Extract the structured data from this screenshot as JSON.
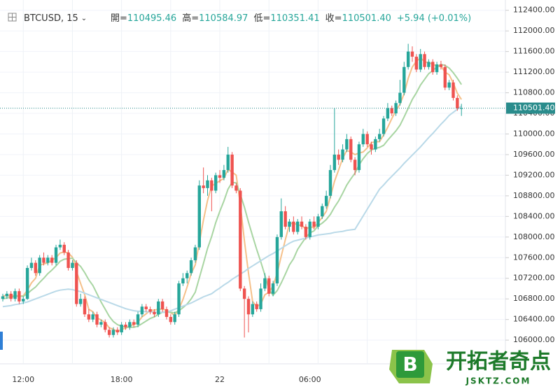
{
  "chart_data": {
    "type": "candlestick",
    "header": {
      "symbol": "BTCUSD, 15",
      "open_label": "開=",
      "open": "110495.46",
      "high_label": "高=",
      "high": "110584.97",
      "low_label": "低=",
      "low": "110351.41",
      "close_label": "收=",
      "close": "110501.40",
      "change": "+5.94 (+0.01%)"
    },
    "up_color": "#26a69a",
    "down_color": "#ef5350",
    "ylim": [
      105540,
      112600
    ],
    "yticks": [
      {
        "value": 106000,
        "label": "106000.00"
      },
      {
        "value": 106400,
        "label": "106400.00"
      },
      {
        "value": 106800,
        "label": "106800.00"
      },
      {
        "value": 107200,
        "label": "107200.00"
      },
      {
        "value": 107600,
        "label": "107600.00"
      },
      {
        "value": 108000,
        "label": "108000.00"
      },
      {
        "value": 108400,
        "label": "108400.00"
      },
      {
        "value": 108800,
        "label": "108800.00"
      },
      {
        "value": 109200,
        "label": "109200.00"
      },
      {
        "value": 109600,
        "label": "109600.00"
      },
      {
        "value": 110000,
        "label": "110000.00"
      },
      {
        "value": 110400,
        "label": "110400.00"
      },
      {
        "value": 110800,
        "label": "110800.00"
      },
      {
        "value": 111200,
        "label": "111200.00"
      },
      {
        "value": 111600,
        "label": "111600.00"
      },
      {
        "value": 112000,
        "label": "112000.00"
      },
      {
        "value": 112400,
        "label": "112400.00"
      }
    ],
    "last_price": {
      "value": 110501.4,
      "label": "110501.40",
      "color": "#2a8c8c"
    },
    "categories": [
      null,
      null,
      null,
      null,
      null,
      "12:00",
      null,
      null,
      null,
      null,
      null,
      null,
      null,
      null,
      null,
      null,
      null,
      null,
      null,
      null,
      null,
      null,
      null,
      null,
      null,
      null,
      null,
      null,
      null,
      "18:00",
      null,
      null,
      null,
      null,
      null,
      null,
      null,
      null,
      null,
      null,
      null,
      null,
      null,
      null,
      null,
      null,
      null,
      null,
      null,
      null,
      null,
      null,
      null,
      "22",
      null,
      null,
      null,
      null,
      null,
      null,
      null,
      null,
      null,
      null,
      null,
      null,
      null,
      null,
      null,
      null,
      null,
      null,
      null,
      null,
      null,
      "06:00",
      null,
      null,
      null,
      null,
      null,
      null,
      null,
      null,
      null,
      null,
      null,
      null,
      null,
      null,
      null,
      null,
      null,
      null,
      null,
      null,
      null,
      null,
      null,
      null,
      null,
      null,
      null,
      null,
      null,
      null,
      null,
      null,
      null,
      null,
      null
    ],
    "ohlc": [
      [
        106800,
        106900,
        106750,
        106850
      ],
      [
        106850,
        106950,
        106800,
        106900
      ],
      [
        106900,
        106950,
        106750,
        106800
      ],
      [
        106800,
        107000,
        106750,
        106950
      ],
      [
        106950,
        107000,
        106700,
        106750
      ],
      [
        106750,
        106850,
        106700,
        106800
      ],
      [
        106800,
        107450,
        106780,
        107400
      ],
      [
        107400,
        107600,
        107350,
        107500
      ],
      [
        107500,
        107550,
        107250,
        107300
      ],
      [
        107300,
        107650,
        107250,
        107600
      ],
      [
        107600,
        107700,
        107450,
        107500
      ],
      [
        107500,
        107650,
        107450,
        107600
      ],
      [
        107600,
        107650,
        107450,
        107500
      ],
      [
        107500,
        107850,
        107450,
        107800
      ],
      [
        107800,
        107950,
        107750,
        107850
      ],
      [
        107850,
        107900,
        107650,
        107700
      ],
      [
        107700,
        107750,
        107350,
        107400
      ],
      [
        107400,
        107550,
        107350,
        107500
      ],
      [
        107500,
        107550,
        106650,
        106700
      ],
      [
        106700,
        106900,
        106650,
        106800
      ],
      [
        106800,
        106850,
        106450,
        106500
      ],
      [
        106500,
        106600,
        106350,
        106400
      ],
      [
        106400,
        106550,
        106350,
        106500
      ],
      [
        106500,
        106550,
        106250,
        106300
      ],
      [
        106300,
        106400,
        106250,
        106350
      ],
      [
        106350,
        106400,
        106150,
        106200
      ],
      [
        106200,
        106250,
        106050,
        106100
      ],
      [
        106100,
        106250,
        106050,
        106200
      ],
      [
        106200,
        106250,
        106100,
        106150
      ],
      [
        106150,
        106350,
        106100,
        106300
      ],
      [
        106300,
        106350,
        106200,
        106250
      ],
      [
        106250,
        106400,
        106200,
        106350
      ],
      [
        106350,
        106400,
        106250,
        106300
      ],
      [
        106300,
        106550,
        106250,
        106500
      ],
      [
        106500,
        106700,
        106450,
        106650
      ],
      [
        106650,
        106700,
        106550,
        106600
      ],
      [
        106600,
        106650,
        106500,
        106550
      ],
      [
        106550,
        106600,
        106450,
        106500
      ],
      [
        106500,
        106800,
        106450,
        106750
      ],
      [
        106750,
        106800,
        106550,
        106600
      ],
      [
        106600,
        106650,
        106400,
        106450
      ],
      [
        106450,
        106500,
        106300,
        106350
      ],
      [
        106350,
        106550,
        106300,
        106500
      ],
      [
        106500,
        107150,
        106450,
        107100
      ],
      [
        107100,
        107300,
        107050,
        107200
      ],
      [
        107200,
        107350,
        107100,
        107300
      ],
      [
        107300,
        107600,
        107250,
        107550
      ],
      [
        107550,
        107850,
        107500,
        107800
      ],
      [
        107800,
        109100,
        107750,
        109000
      ],
      [
        109000,
        109350,
        108850,
        108950
      ],
      [
        108950,
        109200,
        108800,
        109100
      ],
      [
        109100,
        109150,
        108500,
        108900
      ],
      [
        108900,
        109250,
        108850,
        109200
      ],
      [
        109200,
        109300,
        109050,
        109150
      ],
      [
        109150,
        109400,
        109100,
        109300
      ],
      [
        109300,
        109750,
        109250,
        109600
      ],
      [
        109600,
        109650,
        108950,
        109000
      ],
      [
        109000,
        109050,
        108850,
        108900
      ],
      [
        108900,
        108950,
        106950,
        107000
      ],
      [
        107000,
        107050,
        106050,
        106800
      ],
      [
        106800,
        106850,
        106150,
        106500
      ],
      [
        106500,
        106750,
        106450,
        106700
      ],
      [
        106700,
        106750,
        106550,
        106600
      ],
      [
        106600,
        107100,
        106550,
        107000
      ],
      [
        107000,
        107300,
        106950,
        107200
      ],
      [
        107200,
        107250,
        106850,
        106900
      ],
      [
        106900,
        107150,
        106850,
        107100
      ],
      [
        107100,
        108050,
        107050,
        108000
      ],
      [
        108000,
        108750,
        107950,
        108500
      ],
      [
        108500,
        108600,
        108150,
        108200
      ],
      [
        108200,
        108350,
        108100,
        108300
      ],
      [
        108300,
        108400,
        108050,
        108100
      ],
      [
        108100,
        108350,
        108050,
        108300
      ],
      [
        108300,
        108400,
        108150,
        108200
      ],
      [
        108200,
        108250,
        107950,
        108000
      ],
      [
        108000,
        108350,
        107950,
        108300
      ],
      [
        108300,
        108400,
        108150,
        108200
      ],
      [
        108200,
        108450,
        108150,
        108400
      ],
      [
        108400,
        108650,
        108350,
        108600
      ],
      [
        108600,
        108900,
        108550,
        108800
      ],
      [
        108800,
        109400,
        108750,
        109300
      ],
      [
        109300,
        110500,
        109250,
        109600
      ],
      [
        109600,
        109700,
        109400,
        109500
      ],
      [
        109500,
        109800,
        109450,
        109700
      ],
      [
        109700,
        110000,
        109650,
        109900
      ],
      [
        109900,
        109950,
        109450,
        109500
      ],
      [
        109500,
        109550,
        109200,
        109300
      ],
      [
        109300,
        109850,
        109250,
        109800
      ],
      [
        109800,
        110100,
        109750,
        110000
      ],
      [
        110000,
        110050,
        109750,
        109800
      ],
      [
        109800,
        109850,
        109600,
        109700
      ],
      [
        109700,
        109950,
        109650,
        109900
      ],
      [
        109900,
        110100,
        109850,
        110000
      ],
      [
        110000,
        110350,
        109950,
        110300
      ],
      [
        110300,
        110600,
        110250,
        110500
      ],
      [
        110500,
        110550,
        110350,
        110400
      ],
      [
        110400,
        110650,
        110350,
        110600
      ],
      [
        110600,
        111050,
        110550,
        110800
      ],
      [
        110800,
        111400,
        110750,
        111300
      ],
      [
        111300,
        111750,
        111250,
        111600
      ],
      [
        111600,
        111700,
        111400,
        111500
      ],
      [
        111500,
        111550,
        111200,
        111250
      ],
      [
        111250,
        111650,
        111200,
        111550
      ],
      [
        111550,
        111600,
        111250,
        111300
      ],
      [
        111300,
        111450,
        111250,
        111400
      ],
      [
        111400,
        111450,
        111150,
        111200
      ],
      [
        111200,
        111400,
        111150,
        111350
      ],
      [
        111350,
        111420,
        111250,
        111300
      ],
      [
        111300,
        111350,
        110850,
        110900
      ],
      [
        110900,
        111050,
        110850,
        111000
      ],
      [
        111000,
        111050,
        110650,
        110700
      ],
      [
        110700,
        110750,
        110450,
        110495
      ],
      [
        110495.46,
        110584.97,
        110351.41,
        110501.4
      ]
    ],
    "ma": [
      {
        "color": "#f5c08a",
        "values": [
          106850,
          106870,
          106850,
          106870,
          106850,
          106860,
          106970,
          107110,
          107200,
          107450,
          107480,
          107500,
          107550,
          107600,
          107690,
          107710,
          107690,
          107610,
          107330,
          107100,
          106880,
          106600,
          106550,
          106430,
          106390,
          106340,
          106240,
          106210,
          106160,
          106210,
          106230,
          106280,
          106300,
          106350,
          106450,
          106510,
          106580,
          106580,
          106600,
          106600,
          106580,
          106530,
          106480,
          106600,
          106790,
          107030,
          107290,
          107460,
          107890,
          108330,
          108710,
          108990,
          109040,
          109090,
          109140,
          109310,
          109260,
          109200,
          108630,
          107930,
          107300,
          106750,
          106650,
          106700,
          106880,
          106930,
          107050,
          107300,
          107630,
          107950,
          108250,
          108280,
          108230,
          108230,
          108150,
          108200,
          108180,
          108280,
          108380,
          108500,
          108780,
          109080,
          109300,
          109530,
          109680,
          109650,
          109600,
          109630,
          109650,
          109730,
          109830,
          109850,
          109850,
          109980,
          110130,
          110300,
          110450,
          110580,
          110780,
          111080,
          111300,
          111410,
          111480,
          111400,
          111380,
          111360,
          111310,
          111320,
          111200,
          111150,
          110990,
          110790,
          110670
        ]
      },
      {
        "color": "#a8d5a2",
        "values": [
          106800,
          106820,
          106830,
          106850,
          106850,
          106850,
          106900,
          106970,
          107030,
          107120,
          107200,
          107290,
          107360,
          107440,
          107530,
          107570,
          107580,
          107590,
          107500,
          107430,
          107310,
          107170,
          107060,
          106900,
          106740,
          106600,
          106460,
          106360,
          106300,
          106270,
          106250,
          106250,
          106250,
          106270,
          106320,
          106370,
          106420,
          106450,
          106500,
          106540,
          106550,
          106540,
          106530,
          106570,
          106630,
          106700,
          106800,
          106930,
          107210,
          107490,
          107780,
          108010,
          108280,
          108500,
          108700,
          108930,
          109060,
          109050,
          108830,
          108580,
          108290,
          108020,
          107760,
          107520,
          107260,
          106980,
          106870,
          106960,
          107110,
          107280,
          107460,
          107580,
          107760,
          107880,
          107990,
          108080,
          108120,
          108220,
          108270,
          108340,
          108440,
          108580,
          108700,
          108850,
          109010,
          109130,
          109240,
          109400,
          109520,
          109620,
          109690,
          109720,
          109740,
          109780,
          109880,
          109970,
          110060,
          110170,
          110330,
          110500,
          110670,
          110800,
          110950,
          111060,
          111170,
          111230,
          111300,
          111350,
          111330,
          111280,
          111190,
          111080,
          110960
        ]
      },
      {
        "color": "#b9d9e8",
        "values": [
          106650,
          106660,
          106670,
          106690,
          106700,
          106720,
          106740,
          106770,
          106800,
          106830,
          106860,
          106890,
          106920,
          106950,
          106970,
          106980,
          106990,
          106980,
          106960,
          106940,
          106910,
          106880,
          106850,
          106820,
          106790,
          106760,
          106730,
          106700,
          106670,
          106640,
          106610,
          106590,
          106570,
          106560,
          106560,
          106550,
          106550,
          106540,
          106540,
          106540,
          106540,
          106570,
          106600,
          106630,
          106660,
          106690,
          106720,
          106760,
          106800,
          106840,
          106870,
          106900,
          106960,
          107010,
          107070,
          107120,
          107180,
          107230,
          107280,
          107330,
          107390,
          107440,
          107490,
          107540,
          107590,
          107640,
          107680,
          107730,
          107780,
          107830,
          107880,
          107920,
          107940,
          107960,
          107980,
          108000,
          108020,
          108040,
          108050,
          108060,
          108070,
          108090,
          108100,
          108110,
          108130,
          108140,
          108150,
          108280,
          108410,
          108540,
          108670,
          108800,
          108930,
          109010,
          109100,
          109180,
          109260,
          109340,
          109430,
          109510,
          109590,
          109670,
          109750,
          109840,
          109930,
          110010,
          110100,
          110190,
          110270,
          110360,
          110420,
          110480,
          110540
        ]
      }
    ],
    "watermark": {
      "name": "开拓者奇点",
      "url": "JSKTZ.COM",
      "badge": "B"
    }
  }
}
